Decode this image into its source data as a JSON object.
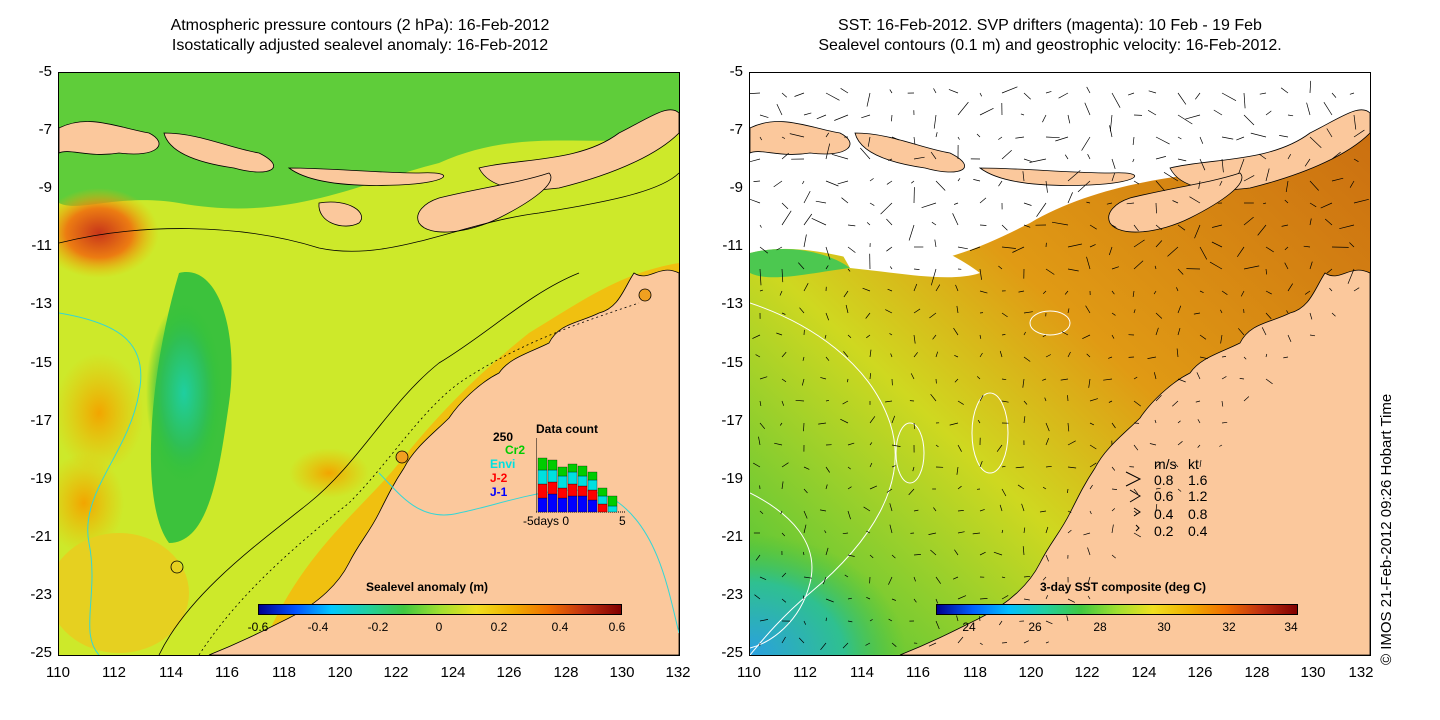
{
  "titles": {
    "left_line1": "Atmospheric pressure contours (2 hPa): 16-Feb-2012",
    "left_line2": "Isostatically adjusted sealevel anomaly: 16-Feb-2012",
    "right_line1": "SST: 16-Feb-2012. SVP drifters (magenta): 10 Feb - 19 Feb",
    "right_line2": "Sealevel contours (0.1 m) and geostrophic velocity: 16-Feb-2012."
  },
  "axes": {
    "x_ticks": [
      "110",
      "112",
      "114",
      "116",
      "118",
      "120",
      "122",
      "124",
      "126",
      "128",
      "130",
      "132"
    ],
    "y_ticks": [
      "-5",
      "-7",
      "-9",
      "-11",
      "-13",
      "-15",
      "-17",
      "-19",
      "-21",
      "-23",
      "-25"
    ],
    "xlim": [
      110,
      132
    ],
    "ylim": [
      -25,
      -5
    ]
  },
  "left_colorbar": {
    "title": "Sealevel anomaly (m)",
    "labels": [
      "-0.6",
      "-0.4",
      "-0.2",
      "0",
      "0.2",
      "0.4",
      "0.6"
    ],
    "range": [
      -0.6,
      0.6
    ]
  },
  "right_colorbar": {
    "title": "3-day SST composite (deg C)",
    "labels": [
      "24",
      "26",
      "28",
      "30",
      "32",
      "34"
    ],
    "range": [
      23,
      34.2
    ]
  },
  "data_count": {
    "title": "Data count",
    "max_label": "250",
    "xaxis_label": "-5days 0",
    "xaxis_end": "5",
    "satellites": [
      {
        "name": "Cr2",
        "color": "#00cc00"
      },
      {
        "name": "Envi",
        "color": "#00e0e0"
      },
      {
        "name": "J-2",
        "color": "#ff0000"
      },
      {
        "name": "J-1",
        "color": "#0000ff"
      }
    ]
  },
  "velocity_legend": {
    "header_ms": "m/s",
    "header_kt": "kt",
    "rows": [
      {
        "ms": "0.8",
        "kt": "1.6"
      },
      {
        "ms": "0.6",
        "kt": "1.2"
      },
      {
        "ms": "0.4",
        "kt": "0.8"
      },
      {
        "ms": "0.2",
        "kt": "0.4"
      }
    ]
  },
  "credit": "© IMOS 21-Feb-2012 09:26 Hobart Time",
  "colors": {
    "land": "#fbc89c",
    "sla_green": "#33c233",
    "sla_yellow": "#d8ec2a",
    "sla_orange": "#f2b600",
    "sst_orange": "#d97d12",
    "sst_green": "#3ec23e",
    "cloud": "#ffffff"
  }
}
